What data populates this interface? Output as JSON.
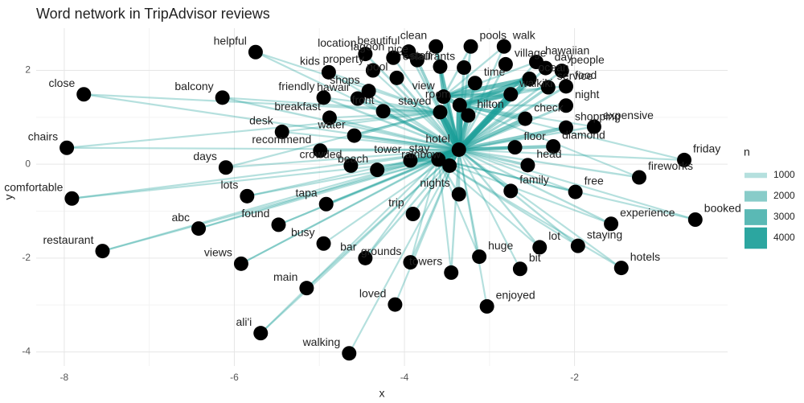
{
  "chart_data": {
    "type": "network",
    "title": "Word network in TripAdvisor reviews",
    "x_label": "x",
    "y_label": "y",
    "xlim": [
      -8.33,
      -0.2
    ],
    "ylim": [
      -4.3,
      2.9
    ],
    "xticks": [
      -8,
      -6,
      -4,
      -2
    ],
    "yticks": [
      -4,
      -2,
      0,
      2
    ],
    "grid": true,
    "node_color": "#000000",
    "edge_color": "#1a9e98",
    "legend": {
      "title": "n",
      "values": [
        1000,
        2000,
        3000,
        4000
      ]
    },
    "nodes": [
      [
        "hotel",
        -3.36,
        0.31
      ],
      [
        "stay",
        -3.6,
        0.1
      ],
      [
        "stayed",
        -3.58,
        1.11
      ],
      [
        "view",
        -3.54,
        1.44
      ],
      [
        "room",
        -3.35,
        1.26
      ],
      [
        "hilton",
        -3.25,
        1.04
      ],
      [
        "waikiki",
        -2.75,
        1.49
      ],
      [
        "ocean",
        -2.53,
        1.82
      ],
      [
        "check",
        -2.58,
        0.97
      ],
      [
        "shopping",
        -2.1,
        0.78
      ],
      [
        "floor",
        -2.7,
        0.36
      ],
      [
        "diamond",
        -2.25,
        0.38
      ],
      [
        "head",
        -2.55,
        -0.02
      ],
      [
        "rainbow",
        -3.47,
        -0.03
      ],
      [
        "tower",
        -3.93,
        0.08
      ],
      [
        "water",
        -4.59,
        0.61
      ],
      [
        "front",
        -4.25,
        1.13
      ],
      [
        "crowded",
        -4.63,
        -0.03
      ],
      [
        "beach",
        -4.32,
        -0.12
      ],
      [
        "time",
        -3.17,
        1.73
      ],
      [
        "staff",
        -3.58,
        2.08
      ],
      [
        "restaurants",
        -3.3,
        2.06
      ],
      [
        "clean",
        -3.63,
        2.51
      ],
      [
        "pools",
        -3.22,
        2.51
      ],
      [
        "nice",
        -3.85,
        2.22
      ],
      [
        "walk",
        -2.83,
        2.51
      ],
      [
        "hawaiian",
        -2.45,
        2.18
      ],
      [
        "village",
        -2.81,
        2.13
      ],
      [
        "day",
        -2.34,
        2.05
      ],
      [
        "people",
        -2.15,
        1.99
      ],
      [
        "service",
        -2.31,
        1.64
      ],
      [
        "food",
        -2.1,
        1.66
      ],
      [
        "night",
        -2.1,
        1.25
      ],
      [
        "expensive",
        -1.77,
        0.8
      ],
      [
        "friday",
        -0.71,
        0.09
      ],
      [
        "fireworks",
        -1.24,
        -0.28
      ],
      [
        "free",
        -1.99,
        -0.59
      ],
      [
        "family",
        -2.75,
        -0.57
      ],
      [
        "nights",
        -3.36,
        -0.64
      ],
      [
        "trip",
        -3.9,
        -1.06
      ],
      [
        "experience",
        -1.57,
        -1.27
      ],
      [
        "booked",
        -0.58,
        -1.18
      ],
      [
        "staying",
        -1.96,
        -1.74
      ],
      [
        "hotels",
        -1.45,
        -2.21
      ],
      [
        "lot",
        -2.41,
        -1.77
      ],
      [
        "bit",
        -2.64,
        -2.23
      ],
      [
        "huge",
        -3.12,
        -1.97
      ],
      [
        "enjoyed",
        -3.03,
        -3.03
      ],
      [
        "towers",
        -3.45,
        -2.31
      ],
      [
        "grounds",
        -3.93,
        -2.09
      ],
      [
        "bar",
        -4.46,
        -2.0
      ],
      [
        "loved",
        -4.11,
        -2.99
      ],
      [
        "walking",
        -4.65,
        -4.03
      ],
      [
        "busy",
        -4.95,
        -1.69
      ],
      [
        "tapa",
        -4.92,
        -0.85
      ],
      [
        "found",
        -5.48,
        -1.29
      ],
      [
        "main",
        -5.15,
        -2.64
      ],
      [
        "ali'i",
        -5.69,
        -3.6
      ],
      [
        "views",
        -5.92,
        -2.12
      ],
      [
        "abc",
        -6.42,
        -1.37
      ],
      [
        "lots",
        -5.85,
        -0.68
      ],
      [
        "days",
        -6.1,
        -0.07
      ],
      [
        "recommend",
        -4.99,
        0.29
      ],
      [
        "desk",
        -5.44,
        0.69
      ],
      [
        "breakfast",
        -4.88,
        0.99
      ],
      [
        "friendly",
        -4.95,
        1.42
      ],
      [
        "kids",
        -4.89,
        1.96
      ],
      [
        "balcony",
        -6.14,
        1.42
      ],
      [
        "helpful",
        -5.75,
        2.39
      ],
      [
        "close",
        -7.77,
        1.49
      ],
      [
        "chairs",
        -7.97,
        0.35
      ],
      [
        "comfortable",
        -7.91,
        -0.73
      ],
      [
        "restaurant",
        -7.55,
        -1.85
      ],
      [
        "hawaii",
        -4.55,
        1.4
      ],
      [
        "shops",
        -4.42,
        1.56
      ],
      [
        "property",
        -4.37,
        2.0
      ],
      [
        "pool",
        -4.09,
        1.84
      ],
      [
        "lagoon",
        -4.13,
        2.27
      ],
      [
        "location",
        -4.46,
        2.35
      ],
      [
        "beautiful",
        -3.95,
        2.4
      ]
    ],
    "edges": [
      [
        0,
        1,
        4200
      ],
      [
        0,
        2,
        3800
      ],
      [
        0,
        3,
        2800
      ],
      [
        0,
        4,
        3500
      ],
      [
        0,
        5,
        2600
      ],
      [
        0,
        6,
        3200
      ],
      [
        0,
        7,
        3000
      ],
      [
        0,
        8,
        2200
      ],
      [
        0,
        9,
        2000
      ],
      [
        0,
        10,
        1800
      ],
      [
        0,
        11,
        1900
      ],
      [
        0,
        12,
        1500
      ],
      [
        0,
        13,
        2400
      ],
      [
        0,
        14,
        2000
      ],
      [
        0,
        15,
        1600
      ],
      [
        0,
        16,
        1500
      ],
      [
        0,
        17,
        1100
      ],
      [
        0,
        18,
        1700
      ],
      [
        0,
        19,
        1600
      ],
      [
        0,
        20,
        1500
      ],
      [
        0,
        21,
        1400
      ],
      [
        0,
        22,
        1800
      ],
      [
        0,
        23,
        1300
      ],
      [
        0,
        24,
        1700
      ],
      [
        0,
        25,
        1100
      ],
      [
        0,
        26,
        1200
      ],
      [
        0,
        27,
        1200
      ],
      [
        0,
        28,
        1300
      ],
      [
        0,
        29,
        1200
      ],
      [
        0,
        30,
        1500
      ],
      [
        0,
        31,
        1400
      ],
      [
        0,
        32,
        1300
      ],
      [
        0,
        33,
        1200
      ],
      [
        0,
        34,
        1000
      ],
      [
        0,
        35,
        1100
      ],
      [
        0,
        36,
        1000
      ],
      [
        0,
        37,
        1300
      ],
      [
        0,
        38,
        1400
      ],
      [
        0,
        39,
        1200
      ],
      [
        0,
        40,
        1100
      ],
      [
        0,
        41,
        1000
      ],
      [
        0,
        42,
        1100
      ],
      [
        0,
        43,
        1000
      ],
      [
        0,
        44,
        1100
      ],
      [
        0,
        45,
        1000
      ],
      [
        0,
        46,
        1000
      ],
      [
        0,
        47,
        1000
      ],
      [
        0,
        48,
        1100
      ],
      [
        0,
        49,
        1000
      ],
      [
        0,
        50,
        1100
      ],
      [
        0,
        51,
        1000
      ],
      [
        0,
        52,
        1000
      ],
      [
        0,
        53,
        1000
      ],
      [
        0,
        54,
        1000
      ],
      [
        0,
        55,
        1000
      ],
      [
        0,
        56,
        1000
      ],
      [
        0,
        57,
        1000
      ],
      [
        0,
        58,
        1000
      ],
      [
        0,
        59,
        1000
      ],
      [
        0,
        60,
        1000
      ],
      [
        0,
        61,
        1000
      ],
      [
        0,
        62,
        1300
      ],
      [
        0,
        63,
        1000
      ],
      [
        0,
        64,
        1200
      ],
      [
        0,
        65,
        1200
      ],
      [
        0,
        66,
        1000
      ],
      [
        0,
        67,
        1100
      ],
      [
        0,
        68,
        1000
      ],
      [
        0,
        69,
        1000
      ],
      [
        0,
        70,
        1000
      ],
      [
        0,
        71,
        1000
      ],
      [
        0,
        72,
        1000
      ],
      [
        0,
        73,
        1300
      ],
      [
        0,
        74,
        1100
      ],
      [
        0,
        75,
        1000
      ],
      [
        0,
        76,
        1300
      ],
      [
        0,
        77,
        1100
      ],
      [
        0,
        78,
        1200
      ],
      [
        0,
        79,
        1200
      ],
      [
        2,
        67,
        1000
      ],
      [
        2,
        69,
        1000
      ],
      [
        2,
        70,
        1000
      ],
      [
        2,
        64,
        1000
      ],
      [
        2,
        65,
        1000
      ],
      [
        2,
        66,
        1000
      ],
      [
        2,
        68,
        1000
      ],
      [
        2,
        63,
        1000
      ],
      [
        2,
        61,
        1000
      ],
      [
        2,
        15,
        1500
      ],
      [
        2,
        16,
        1300
      ],
      [
        2,
        73,
        1100
      ],
      [
        3,
        7,
        2600
      ],
      [
        3,
        4,
        2400
      ],
      [
        3,
        19,
        1800
      ],
      [
        3,
        20,
        1600
      ],
      [
        3,
        22,
        1400
      ],
      [
        3,
        23,
        1200
      ],
      [
        3,
        25,
        1100
      ],
      [
        3,
        6,
        2200
      ],
      [
        3,
        26,
        1100
      ],
      [
        3,
        31,
        1200
      ],
      [
        4,
        7,
        2800
      ],
      [
        4,
        6,
        2600
      ],
      [
        4,
        5,
        2200
      ],
      [
        4,
        8,
        1800
      ],
      [
        4,
        30,
        1300
      ],
      [
        4,
        32,
        1200
      ],
      [
        4,
        33,
        1000
      ],
      [
        4,
        34,
        1000
      ],
      [
        4,
        35,
        1000
      ],
      [
        1,
        36,
        1100
      ],
      [
        1,
        38,
        1200
      ],
      [
        1,
        40,
        1000
      ],
      [
        1,
        41,
        1000
      ],
      [
        1,
        42,
        1000
      ],
      [
        1,
        43,
        1000
      ],
      [
        1,
        44,
        1000
      ],
      [
        1,
        46,
        1000
      ],
      [
        1,
        48,
        1000
      ],
      [
        1,
        49,
        1000
      ],
      [
        1,
        50,
        1000
      ],
      [
        1,
        54,
        1000
      ],
      [
        1,
        55,
        1000
      ],
      [
        1,
        57,
        1000
      ],
      [
        1,
        58,
        1000
      ],
      [
        1,
        59,
        1000
      ],
      [
        1,
        60,
        1000
      ],
      [
        1,
        71,
        1000
      ],
      [
        1,
        72,
        1000
      ],
      [
        1,
        13,
        2000
      ],
      [
        1,
        14,
        1800
      ]
    ]
  }
}
